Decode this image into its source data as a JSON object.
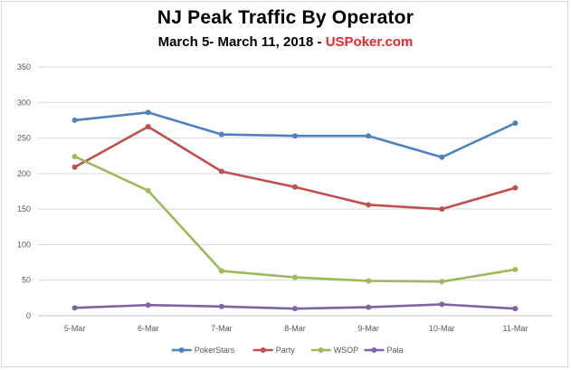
{
  "title": "NJ Peak Traffic By Operator",
  "subtitle": {
    "text": "March 5- March 11, 2018 - ",
    "brand": "USPoker.com",
    "brand_color": "#e8272c"
  },
  "chart_data": {
    "type": "line",
    "title": "NJ Peak Traffic By Operator",
    "subtitle": "March 5- March 11, 2018 - USPoker.com",
    "xlabel": "",
    "ylabel": "",
    "ylim": [
      0,
      350
    ],
    "yticks": [
      0,
      50,
      100,
      150,
      200,
      250,
      300,
      350
    ],
    "grid": true,
    "legend_position": "bottom",
    "categories": [
      "5-Mar",
      "6-Mar",
      "7-Mar",
      "8-Mar",
      "9-Mar",
      "10-Mar",
      "11-Mar"
    ],
    "series": [
      {
        "name": "PokerStars",
        "color": "#4f81bd",
        "values": [
          275,
          286,
          255,
          253,
          253,
          223,
          271
        ]
      },
      {
        "name": "Party",
        "color": "#c0504d",
        "values": [
          209,
          266,
          203,
          181,
          156,
          150,
          180
        ]
      },
      {
        "name": "WSOP",
        "color": "#9bbb59",
        "values": [
          224,
          176,
          63,
          54,
          49,
          48,
          65
        ]
      },
      {
        "name": "Pala",
        "color": "#8064a2",
        "values": [
          11,
          15,
          13,
          10,
          12,
          16,
          10
        ]
      }
    ]
  }
}
